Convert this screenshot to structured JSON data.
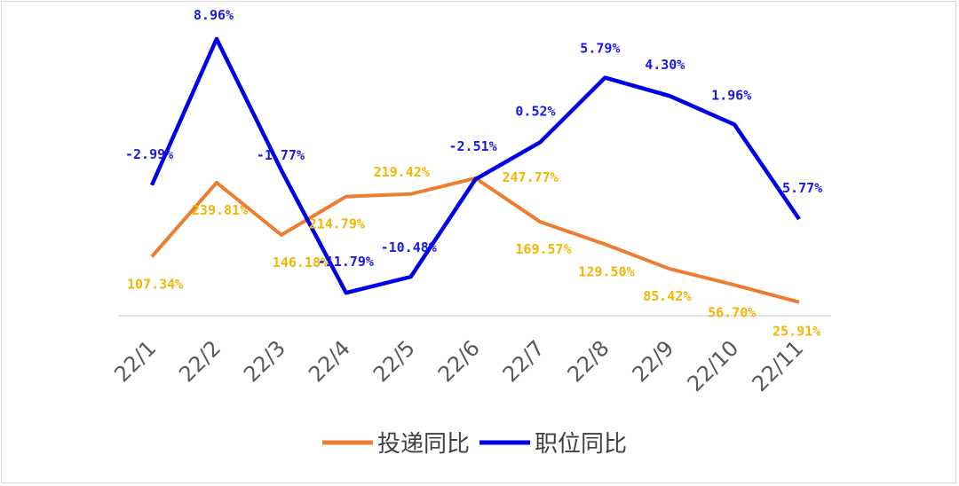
{
  "chart_data": {
    "type": "line",
    "categories": [
      "22/1",
      "22/2",
      "22/3",
      "22/4",
      "22/5",
      "22/6",
      "22/7",
      "22/8",
      "22/9",
      "22/10",
      "22/11"
    ],
    "series": [
      {
        "name": "投递同比",
        "color": "#ed7d31",
        "label_color": "#f2b705",
        "values": [
          107.34,
          239.81,
          146.18,
          214.79,
          219.42,
          247.77,
          169.57,
          129.5,
          85.42,
          56.7,
          25.91
        ],
        "labels": [
          "107.34%",
          "239.81%",
          "146.18%",
          "214.79%",
          "219.42%",
          "247.77%",
          "169.57%",
          "129.50%",
          "85.42%",
          "56.70%",
          "25.91%"
        ]
      },
      {
        "name": "职位同比",
        "color": "#0000e6",
        "label_color": "#1a1ae6",
        "values": [
          -2.99,
          8.96,
          -1.77,
          -11.79,
          -10.48,
          -2.51,
          0.52,
          5.79,
          4.3,
          1.96,
          -5.77
        ],
        "labels": [
          "-2.99%",
          "8.96%",
          "-1.77%",
          "-11.79%",
          "-10.48%",
          "-2.51%",
          "0.52%",
          "5.79%",
          "4.30%",
          "1.96%",
          "-5.77%"
        ]
      }
    ],
    "legend_position": "bottom",
    "grid": false
  }
}
